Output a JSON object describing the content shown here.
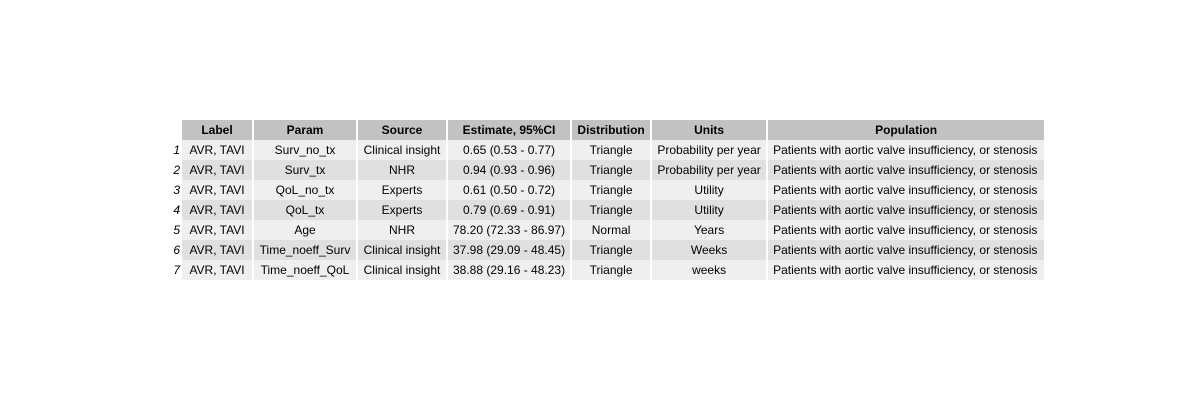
{
  "table": {
    "headers": [
      "Label",
      "Param",
      "Source",
      "Estimate, 95%CI",
      "Distribution",
      "Units",
      "Population"
    ],
    "rows": [
      {
        "num": "1",
        "label": "AVR, TAVI",
        "param": "Surv_no_tx",
        "source": "Clinical insight",
        "estimate": "0.65 (0.53 - 0.77)",
        "distribution": "Triangle",
        "units": "Probability per year",
        "population": "Patients with aortic valve insufficiency, or stenosis"
      },
      {
        "num": "2",
        "label": "AVR, TAVI",
        "param": "Surv_tx",
        "source": "NHR",
        "estimate": "0.94 (0.93 - 0.96)",
        "distribution": "Triangle",
        "units": "Probability per year",
        "population": "Patients with aortic valve insufficiency, or stenosis"
      },
      {
        "num": "3",
        "label": "AVR, TAVI",
        "param": "QoL_no_tx",
        "source": "Experts",
        "estimate": "0.61 (0.50 - 0.72)",
        "distribution": "Triangle",
        "units": "Utility",
        "population": "Patients with aortic valve insufficiency, or stenosis"
      },
      {
        "num": "4",
        "label": "AVR, TAVI",
        "param": "QoL_tx",
        "source": "Experts",
        "estimate": "0.79 (0.69 - 0.91)",
        "distribution": "Triangle",
        "units": "Utility",
        "population": "Patients with aortic valve insufficiency, or stenosis"
      },
      {
        "num": "5",
        "label": "AVR, TAVI",
        "param": "Age",
        "source": "NHR",
        "estimate": "78.20 (72.33 - 86.97)",
        "distribution": "Normal",
        "units": "Years",
        "population": "Patients with aortic valve insufficiency, or stenosis"
      },
      {
        "num": "6",
        "label": "AVR, TAVI",
        "param": "Time_noeff_Surv",
        "source": "Clinical insight",
        "estimate": "37.98 (29.09 - 48.45)",
        "distribution": "Triangle",
        "units": "Weeks",
        "population": "Patients with aortic valve insufficiency, or stenosis"
      },
      {
        "num": "7",
        "label": "AVR, TAVI",
        "param": "Time_noeff_QoL",
        "source": "Clinical insight",
        "estimate": "38.88 (29.16 - 48.23)",
        "distribution": "Triangle",
        "units": "weeks",
        "population": "Patients with aortic valve insufficiency, or stenosis"
      }
    ]
  }
}
